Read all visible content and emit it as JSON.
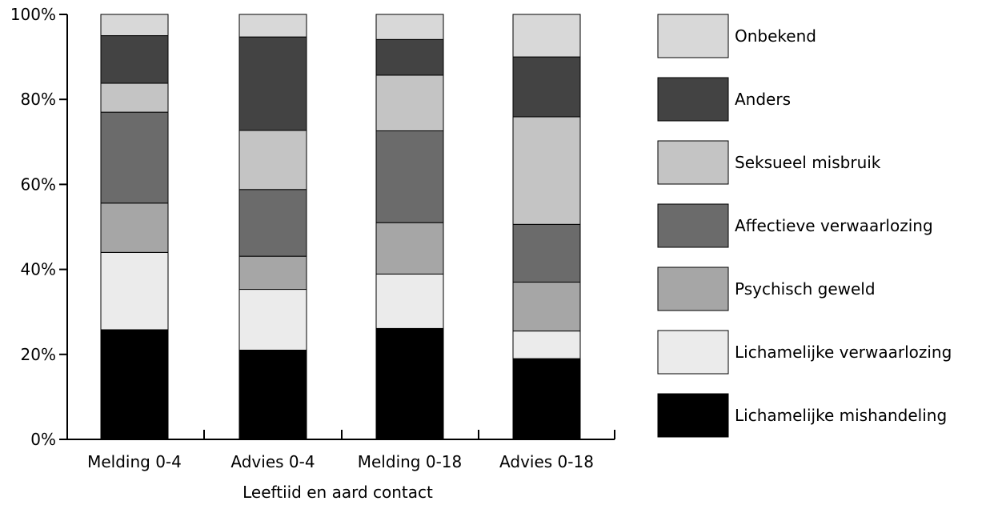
{
  "chart_data": {
    "type": "bar",
    "stacked": true,
    "xlabel": "Leeftiid en aard contact",
    "ylabel": "",
    "ylim": [
      0,
      100
    ],
    "y_ticks": [
      "0%",
      "20%",
      "40%",
      "60%",
      "80%",
      "100%"
    ],
    "grid": false,
    "legend_position": "right",
    "categories": [
      "Melding 0-4",
      "Advies 0-4",
      "Melding 0-18",
      "Advies 0-18"
    ],
    "series": [
      {
        "name": "Lichamelijke mishandeling",
        "color": "#000000",
        "values": [
          25.8,
          21.0,
          26.1,
          19.0
        ]
      },
      {
        "name": "Lichamelijke verwaarlozing",
        "color": "#ebebeb",
        "values": [
          18.2,
          14.3,
          12.8,
          6.5
        ]
      },
      {
        "name": "Psychisch geweld",
        "color": "#a6a6a6",
        "values": [
          11.6,
          7.8,
          12.1,
          11.5
        ]
      },
      {
        "name": "Affectieve verwaarlozing",
        "color": "#6b6b6b",
        "values": [
          21.4,
          15.7,
          21.6,
          13.6
        ]
      },
      {
        "name": "Seksueel misbruik",
        "color": "#c4c4c4",
        "values": [
          6.8,
          13.9,
          13.1,
          25.3
        ]
      },
      {
        "name": "Anders",
        "color": "#434343",
        "values": [
          11.2,
          22.0,
          8.4,
          14.1
        ]
      },
      {
        "name": "Onbekend",
        "color": "#d8d8d8",
        "values": [
          5.0,
          5.3,
          5.9,
          10.0
        ]
      }
    ]
  }
}
